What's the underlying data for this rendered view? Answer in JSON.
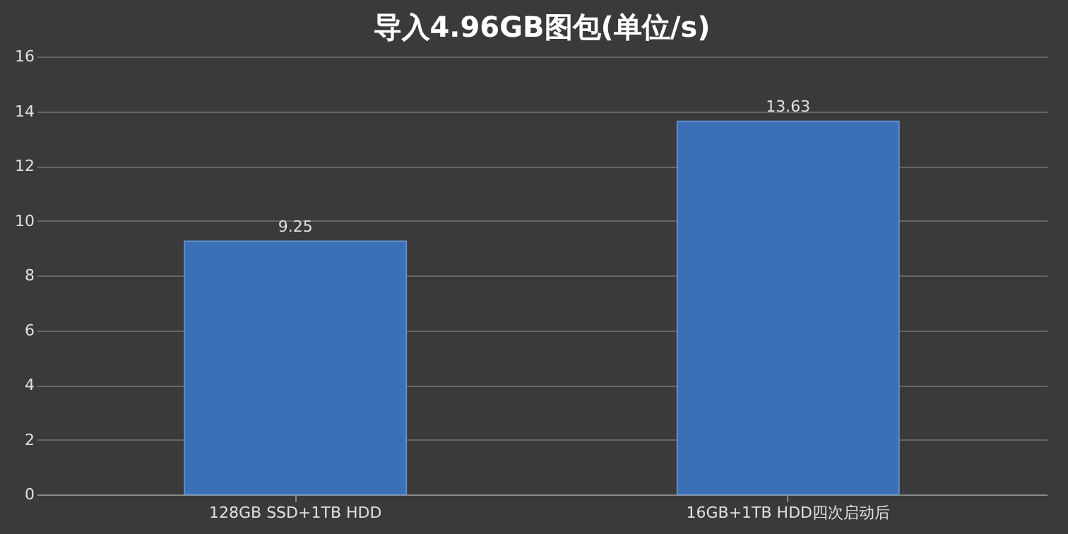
{
  "chart_data": {
    "type": "bar",
    "title": "导入4.96GB图包(单位/s)",
    "categories": [
      "128GB SSD+1TB HDD",
      "16GB+1TB HDD四次启动后"
    ],
    "values": [
      9.25,
      13.63
    ],
    "color": "#3b6fb6",
    "ylim": [
      0,
      16
    ],
    "yticks": [
      0,
      2,
      4,
      6,
      8,
      10,
      12,
      14,
      16
    ],
    "grid": "y",
    "data_labels": true
  }
}
